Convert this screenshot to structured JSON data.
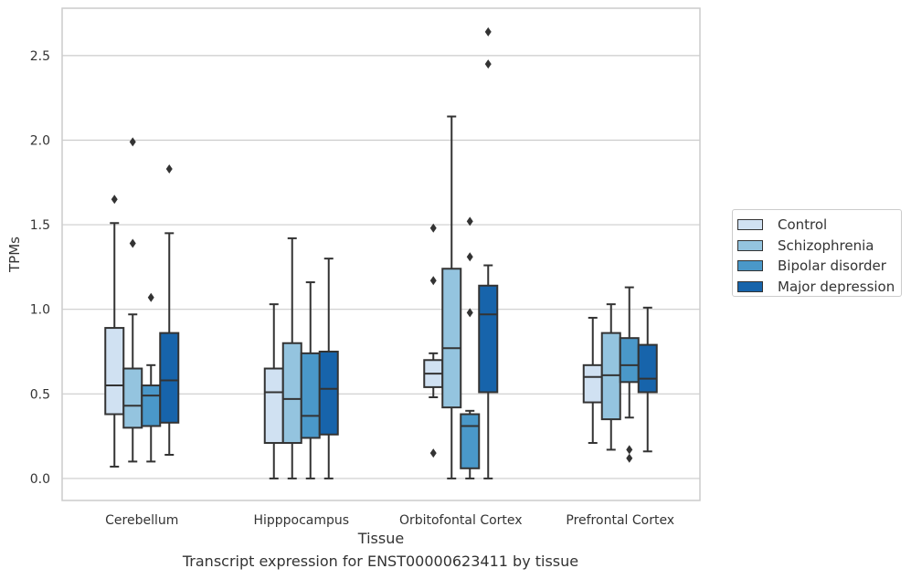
{
  "caption": "Transcript expression for ENST00000623411 by tissue",
  "chart_data": {
    "type": "boxplot",
    "xlabel": "Tissue",
    "ylabel": "TPMs",
    "ylim": [
      -0.13,
      2.78
    ],
    "yticks": [
      0.0,
      0.5,
      1.0,
      1.5,
      2.0,
      2.5
    ],
    "grid": "horizontal",
    "legend_position": "right",
    "categories": [
      "Cerebellum",
      "Hipppocampus",
      "Orbitofontal Cortex",
      "Prefrontal Cortex"
    ],
    "series": [
      {
        "name": "Control",
        "color": "#d0e1f2",
        "boxes": [
          {
            "whislo": 0.07,
            "q1": 0.38,
            "med": 0.55,
            "q3": 0.89,
            "whishi": 1.51,
            "fliers": [
              1.65
            ]
          },
          {
            "whislo": 0.0,
            "q1": 0.21,
            "med": 0.51,
            "q3": 0.65,
            "whishi": 1.03,
            "fliers": []
          },
          {
            "whislo": 0.48,
            "q1": 0.54,
            "med": 0.62,
            "q3": 0.7,
            "whishi": 0.74,
            "fliers": [
              1.48,
              1.17,
              0.15
            ]
          },
          {
            "whislo": 0.21,
            "q1": 0.45,
            "med": 0.6,
            "q3": 0.67,
            "whishi": 0.95,
            "fliers": []
          }
        ]
      },
      {
        "name": "Schizophrenia",
        "color": "#94c4df",
        "boxes": [
          {
            "whislo": 0.1,
            "q1": 0.3,
            "med": 0.43,
            "q3": 0.65,
            "whishi": 0.97,
            "fliers": [
              1.99,
              1.39
            ]
          },
          {
            "whislo": 0.0,
            "q1": 0.21,
            "med": 0.47,
            "q3": 0.8,
            "whishi": 1.42,
            "fliers": []
          },
          {
            "whislo": 0.0,
            "q1": 0.42,
            "med": 0.77,
            "q3": 1.24,
            "whishi": 2.14,
            "fliers": []
          },
          {
            "whislo": 0.17,
            "q1": 0.35,
            "med": 0.61,
            "q3": 0.86,
            "whishi": 1.03,
            "fliers": []
          }
        ]
      },
      {
        "name": "Bipolar disorder",
        "color": "#4a98c9",
        "boxes": [
          {
            "whislo": 0.1,
            "q1": 0.31,
            "med": 0.49,
            "q3": 0.55,
            "whishi": 0.67,
            "fliers": [
              1.07
            ]
          },
          {
            "whislo": 0.0,
            "q1": 0.24,
            "med": 0.37,
            "q3": 0.74,
            "whishi": 1.16,
            "fliers": []
          },
          {
            "whislo": 0.0,
            "q1": 0.06,
            "med": 0.31,
            "q3": 0.38,
            "whishi": 0.4,
            "fliers": [
              1.52,
              1.31,
              0.98
            ]
          },
          {
            "whislo": 0.36,
            "q1": 0.57,
            "med": 0.67,
            "q3": 0.83,
            "whishi": 1.13,
            "fliers": [
              0.17,
              0.12
            ]
          }
        ]
      },
      {
        "name": "Major depression",
        "color": "#1764ab",
        "boxes": [
          {
            "whislo": 0.14,
            "q1": 0.33,
            "med": 0.58,
            "q3": 0.86,
            "whishi": 1.45,
            "fliers": [
              1.83
            ]
          },
          {
            "whislo": 0.0,
            "q1": 0.26,
            "med": 0.53,
            "q3": 0.75,
            "whishi": 1.3,
            "fliers": []
          },
          {
            "whislo": 0.0,
            "q1": 0.51,
            "med": 0.97,
            "q3": 1.14,
            "whishi": 1.26,
            "fliers": [
              2.64,
              2.45
            ]
          },
          {
            "whislo": 0.16,
            "q1": 0.51,
            "med": 0.59,
            "q3": 0.79,
            "whishi": 1.01,
            "fliers": []
          }
        ]
      }
    ]
  }
}
